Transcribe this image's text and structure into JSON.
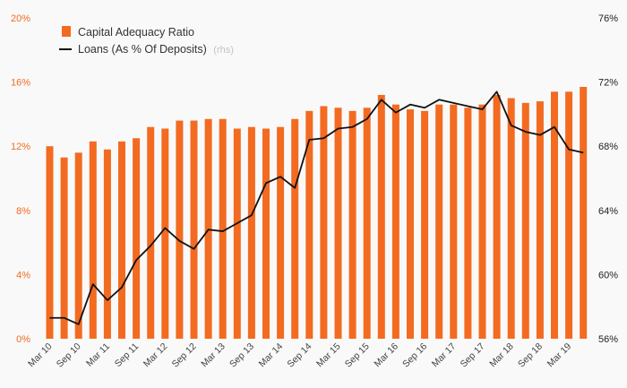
{
  "chart_data": {
    "type": "bar+line",
    "title": "",
    "xlabel": "",
    "ylabel_left": "",
    "ylabel_right": "",
    "colors": {
      "bars": "#f26b21",
      "line": "#111111",
      "left_ticks": "#f26b21",
      "right_ticks": "#222222"
    },
    "legend": {
      "position": "top-left",
      "bar_label": "Capital Adequacy Ratio",
      "line_label": "Loans (As % Of Deposits)",
      "line_suffix": "(rhs)"
    },
    "left_axis": {
      "ylim": [
        0,
        20
      ],
      "ticks": [
        0,
        4,
        8,
        12,
        16,
        20
      ],
      "tick_labels": [
        "0%",
        "4%",
        "8%",
        "12%",
        "16%",
        "20%"
      ]
    },
    "right_axis": {
      "ylim": [
        56,
        76
      ],
      "ticks": [
        56,
        60,
        64,
        68,
        72,
        76
      ],
      "tick_labels": [
        "56%",
        "60%",
        "64%",
        "68%",
        "72%",
        "76%"
      ]
    },
    "grid": false,
    "x_labels": [
      "Mar 10",
      "Sep 10",
      "Mar 11",
      "Sep 11",
      "Mar 12",
      "Sep 12",
      "Mar 13",
      "Sep 13",
      "Mar 14",
      "Sep 14",
      "Mar 15",
      "Sep 15",
      "Mar 16",
      "Sep 16",
      "Mar 17",
      "Sep 17",
      "Mar 18",
      "Sep 18",
      "Mar 19"
    ],
    "bar_series": {
      "name": "Capital Adequacy Ratio",
      "values": [
        12.0,
        11.3,
        11.6,
        12.3,
        11.8,
        12.3,
        12.5,
        13.2,
        13.1,
        13.6,
        13.6,
        13.7,
        13.7,
        13.1,
        13.2,
        13.1,
        13.2,
        13.7,
        14.2,
        14.5,
        14.4,
        14.2,
        14.4,
        15.2,
        14.6,
        14.3,
        14.2,
        14.6,
        14.6,
        14.4,
        14.6,
        15.2,
        15.0,
        14.7,
        14.8,
        15.4,
        15.4,
        15.7
      ]
    },
    "line_series": {
      "name": "Loans (As % Of Deposits)",
      "values": [
        57.3,
        57.3,
        56.9,
        59.4,
        58.4,
        59.2,
        60.9,
        61.8,
        62.9,
        62.1,
        61.6,
        62.8,
        62.7,
        63.2,
        63.7,
        65.7,
        66.1,
        65.4,
        68.4,
        68.5,
        69.1,
        69.2,
        69.7,
        70.9,
        70.1,
        70.6,
        70.4,
        70.9,
        70.7,
        70.5,
        70.3,
        71.4,
        69.3,
        68.9,
        68.7,
        69.2,
        67.8,
        67.6
      ]
    }
  }
}
